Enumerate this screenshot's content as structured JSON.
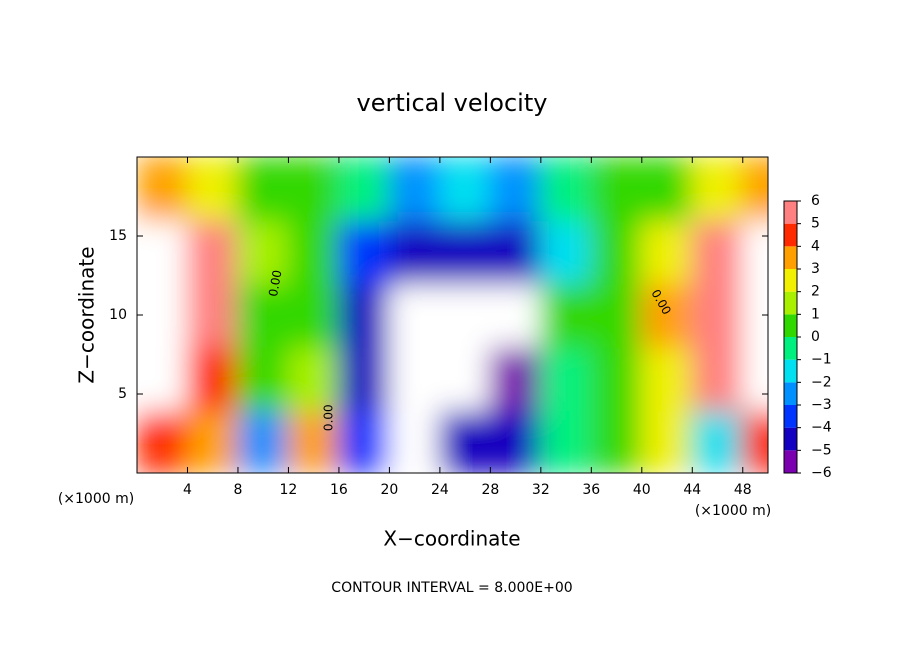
{
  "chart_data": {
    "type": "contour",
    "title": "vertical velocity",
    "x_label": "X−coordinate",
    "y_label": "Z−coordinate",
    "x_unit": "(×1000 m)",
    "y_unit": "(×1000 m)",
    "footnote": "CONTOUR INTERVAL = 8.000E+00",
    "contour_labels": [
      "0.00",
      "0.00",
      "0.00"
    ],
    "xlim": [
      0,
      50
    ],
    "ylim": [
      0,
      20
    ],
    "xticks": [
      4,
      8,
      12,
      16,
      20,
      24,
      28,
      32,
      36,
      40,
      44,
      48
    ],
    "yticks": [
      5,
      10,
      15
    ],
    "x": [
      2,
      6,
      10,
      14,
      18,
      22,
      26,
      30,
      34,
      38,
      42,
      46,
      50
    ],
    "y": [
      2,
      6,
      10,
      14,
      18
    ],
    "z": [
      [
        4,
        3,
        -3,
        3,
        -4,
        -7,
        -5,
        -5,
        -1,
        0,
        2,
        -2,
        4
      ],
      [
        8,
        4,
        0.5,
        1,
        -5,
        -8,
        -8,
        -6,
        -1,
        0,
        2,
        5,
        7
      ],
      [
        8,
        5,
        0.5,
        0,
        -5,
        -8,
        -8,
        -7,
        0.5,
        0,
        3,
        5,
        8
      ],
      [
        8,
        5,
        1,
        0,
        -4,
        -5,
        -5,
        -5,
        -2,
        0,
        2,
        5,
        8
      ],
      [
        3,
        2,
        0.5,
        0,
        -1,
        -3,
        -2,
        -3,
        -1,
        0,
        0.5,
        2,
        3
      ]
    ],
    "colorbar": {
      "lim": [
        -6,
        6
      ],
      "colors": [
        "#7a00b0",
        "#1400c0",
        "#0034ff",
        "#0090ff",
        "#00e0f0",
        "#00f080",
        "#30d800",
        "#a8f000",
        "#f0f000",
        "#ffa000",
        "#ff2a00",
        "#ff8080"
      ],
      "ticks": [
        {
          "value": -6,
          "label": "−6"
        },
        {
          "value": -5,
          "label": "−5"
        },
        {
          "value": -4,
          "label": "−4"
        },
        {
          "value": -3,
          "label": "−3"
        },
        {
          "value": -2,
          "label": "−2"
        },
        {
          "value": -1,
          "label": "−1"
        },
        0,
        1,
        2,
        3,
        4,
        5,
        6
      ]
    }
  }
}
